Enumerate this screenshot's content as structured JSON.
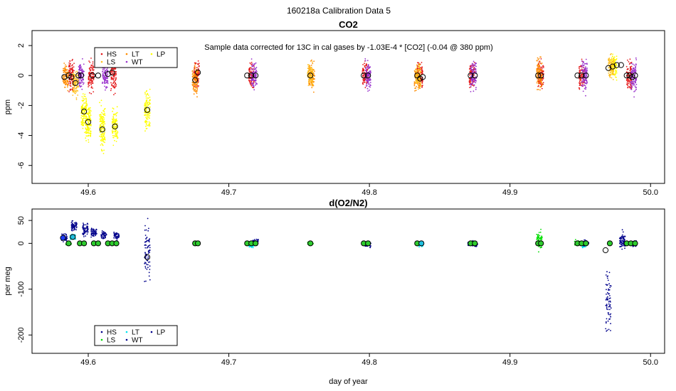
{
  "page_title": "160218a   Calibration Data 5",
  "chart_data": [
    {
      "type": "scatter",
      "title": "CO2",
      "annotation": "Sample data corrected for 13C in cal gases by -1.03E-4 * [CO2] (-0.04 @ 380 ppm)",
      "xlabel": "",
      "ylabel": "ppm",
      "xlim": [
        49.56,
        50.01
      ],
      "ylim": [
        -7.2,
        3.0
      ],
      "xticks": [
        49.6,
        49.7,
        49.8,
        49.9,
        50.0
      ],
      "xtick_labels": [
        "49.6",
        "49.7",
        "49.8",
        "49.9",
        "50.0"
      ],
      "yticks": [
        -6,
        -4,
        -2,
        0,
        2
      ],
      "ytick_labels": [
        "-6",
        "-4",
        "-2",
        "0",
        "2"
      ],
      "legend": {
        "position": "top-left",
        "entries": [
          {
            "label": "HS",
            "color": "#e41a1c"
          },
          {
            "label": "LT",
            "color": "#ff8c00"
          },
          {
            "label": "LP",
            "color": "#ffff00"
          },
          {
            "label": "LS",
            "color": "#ffc020"
          },
          {
            "label": "WT",
            "color": "#9932cc"
          }
        ]
      },
      "series": [
        {
          "name": "HS",
          "color": "#e41a1c",
          "clusters": [
            {
              "x": 49.588,
              "y": 0.0,
              "spread": 0.9
            },
            {
              "x": 49.602,
              "y": 0.0,
              "spread": 0.9
            },
            {
              "x": 49.618,
              "y": 0.1,
              "spread": 1.0
            },
            {
              "x": 49.677,
              "y": 0.1,
              "spread": 0.7
            },
            {
              "x": 49.716,
              "y": 0.0,
              "spread": 0.7
            },
            {
              "x": 49.797,
              "y": 0.0,
              "spread": 0.7
            },
            {
              "x": 49.836,
              "y": -0.1,
              "spread": 0.8
            },
            {
              "x": 49.873,
              "y": 0.0,
              "spread": 0.8
            },
            {
              "x": 49.922,
              "y": 0.0,
              "spread": 0.8
            },
            {
              "x": 49.951,
              "y": 0.0,
              "spread": 0.8
            },
            {
              "x": 49.985,
              "y": 0.0,
              "spread": 0.9
            }
          ]
        },
        {
          "name": "LT",
          "color": "#ff8c00",
          "clusters": [
            {
              "x": 49.584,
              "y": -0.1,
              "spread": 0.8
            },
            {
              "x": 49.676,
              "y": -0.3,
              "spread": 0.9
            },
            {
              "x": 49.759,
              "y": 0.0,
              "spread": 0.8
            },
            {
              "x": 49.834,
              "y": -0.2,
              "spread": 0.7
            },
            {
              "x": 49.921,
              "y": 0.1,
              "spread": 0.9
            }
          ]
        },
        {
          "name": "LP",
          "color": "#ffff00",
          "clusters": [
            {
              "x": 49.597,
              "y": -2.4,
              "spread": 1.0
            },
            {
              "x": 49.6,
              "y": -3.1,
              "spread": 1.1
            },
            {
              "x": 49.61,
              "y": -3.6,
              "spread": 1.4
            },
            {
              "x": 49.619,
              "y": -3.4,
              "spread": 1.0
            },
            {
              "x": 49.642,
              "y": -2.3,
              "spread": 1.1
            },
            {
              "x": 49.974,
              "y": 0.6,
              "spread": 0.8
            }
          ]
        },
        {
          "name": "LS",
          "color": "#ffc020",
          "clusters": [
            {
              "x": 49.591,
              "y": -0.5,
              "spread": 0.8
            },
            {
              "x": 49.758,
              "y": 0.0,
              "spread": 0.7
            },
            {
              "x": 49.835,
              "y": 0.0,
              "spread": 0.7
            },
            {
              "x": 49.972,
              "y": 0.5,
              "spread": 0.7
            }
          ]
        },
        {
          "name": "WT",
          "color": "#9932cc",
          "clusters": [
            {
              "x": 49.595,
              "y": 0.0,
              "spread": 0.8
            },
            {
              "x": 49.612,
              "y": 0.0,
              "spread": 0.7
            },
            {
              "x": 49.718,
              "y": 0.0,
              "spread": 0.8
            },
            {
              "x": 49.799,
              "y": 0.0,
              "spread": 0.8
            },
            {
              "x": 49.874,
              "y": 0.0,
              "spread": 0.8
            },
            {
              "x": 49.953,
              "y": 0.0,
              "spread": 0.9
            },
            {
              "x": 49.988,
              "y": -0.1,
              "spread": 0.9
            }
          ]
        }
      ],
      "means": [
        {
          "x": 49.583,
          "y": -0.1
        },
        {
          "x": 49.586,
          "y": 0.0
        },
        {
          "x": 49.588,
          "y": -0.1
        },
        {
          "x": 49.591,
          "y": -0.5
        },
        {
          "x": 49.593,
          "y": 0.0
        },
        {
          "x": 49.595,
          "y": 0.0
        },
        {
          "x": 49.597,
          "y": -2.4
        },
        {
          "x": 49.6,
          "y": -3.1
        },
        {
          "x": 49.603,
          "y": 0.0
        },
        {
          "x": 49.607,
          "y": 0.0
        },
        {
          "x": 49.61,
          "y": -3.6
        },
        {
          "x": 49.614,
          "y": 0.1
        },
        {
          "x": 49.617,
          "y": 0.2
        },
        {
          "x": 49.619,
          "y": -3.4
        },
        {
          "x": 49.642,
          "y": -2.3
        },
        {
          "x": 49.676,
          "y": -0.3
        },
        {
          "x": 49.678,
          "y": 0.2
        },
        {
          "x": 49.713,
          "y": 0.0
        },
        {
          "x": 49.716,
          "y": 0.0
        },
        {
          "x": 49.719,
          "y": 0.0
        },
        {
          "x": 49.758,
          "y": 0.0
        },
        {
          "x": 49.796,
          "y": 0.0
        },
        {
          "x": 49.799,
          "y": 0.0
        },
        {
          "x": 49.834,
          "y": 0.0
        },
        {
          "x": 49.836,
          "y": -0.2
        },
        {
          "x": 49.838,
          "y": -0.1
        },
        {
          "x": 49.872,
          "y": 0.0
        },
        {
          "x": 49.875,
          "y": 0.0
        },
        {
          "x": 49.92,
          "y": 0.0
        },
        {
          "x": 49.922,
          "y": 0.0
        },
        {
          "x": 49.948,
          "y": 0.0
        },
        {
          "x": 49.951,
          "y": 0.0
        },
        {
          "x": 49.954,
          "y": 0.0
        },
        {
          "x": 49.97,
          "y": 0.5
        },
        {
          "x": 49.973,
          "y": 0.6
        },
        {
          "x": 49.976,
          "y": 0.7
        },
        {
          "x": 49.979,
          "y": 0.7
        },
        {
          "x": 49.983,
          "y": 0.0
        },
        {
          "x": 49.985,
          "y": 0.0
        },
        {
          "x": 49.987,
          "y": -0.1
        },
        {
          "x": 49.989,
          "y": 0.0
        }
      ]
    },
    {
      "type": "scatter",
      "title": "d(O2/N2)",
      "xlabel": "day of year",
      "ylabel": "per meg",
      "xlim": [
        49.56,
        50.01
      ],
      "ylim": [
        -240,
        75
      ],
      "xticks": [
        49.6,
        49.7,
        49.8,
        49.9,
        50.0
      ],
      "xtick_labels": [
        "49.6",
        "49.7",
        "49.8",
        "49.9",
        "50.0"
      ],
      "yticks": [
        -200,
        -100,
        0,
        50
      ],
      "ytick_labels": [
        "-200",
        "-100",
        "0",
        "50"
      ],
      "legend": {
        "position": "bottom-left",
        "entries": [
          {
            "label": "HS",
            "color": "#00008b"
          },
          {
            "label": "LT",
            "color": "#00e5ee"
          },
          {
            "label": "LP",
            "color": "#00008b"
          },
          {
            "label": "LS",
            "color": "#00dd00"
          },
          {
            "label": "WT",
            "color": "#00008b"
          }
        ]
      },
      "series": [
        {
          "name": "HS",
          "color": "#00008b",
          "clusters": [
            {
              "x": 49.583,
              "y": 12,
              "spread": 8
            },
            {
              "x": 49.59,
              "y": 38,
              "spread": 10
            },
            {
              "x": 49.598,
              "y": 28,
              "spread": 12
            },
            {
              "x": 49.604,
              "y": 25,
              "spread": 10
            },
            {
              "x": 49.611,
              "y": 18,
              "spread": 8
            },
            {
              "x": 49.62,
              "y": 18,
              "spread": 8
            },
            {
              "x": 49.719,
              "y": 3,
              "spread": 6
            },
            {
              "x": 49.799,
              "y": -3,
              "spread": 6
            },
            {
              "x": 49.875,
              "y": -2,
              "spread": 5
            },
            {
              "x": 49.98,
              "y": 5,
              "spread": 16
            },
            {
              "x": 49.988,
              "y": 0,
              "spread": 6
            }
          ]
        },
        {
          "name": "LT",
          "color": "#00e5ee",
          "clusters": [
            {
              "x": 49.589,
              "y": 14,
              "spread": 5
            },
            {
              "x": 49.716,
              "y": -3,
              "spread": 6
            },
            {
              "x": 49.836,
              "y": -2,
              "spread": 6
            },
            {
              "x": 49.952,
              "y": -2,
              "spread": 6
            }
          ]
        },
        {
          "name": "LP",
          "color": "#00008b",
          "clusters": [
            {
              "x": 49.642,
              "y": -18,
              "spread": 55
            },
            {
              "x": 49.97,
              "y": -130,
              "spread": 60
            }
          ]
        },
        {
          "name": "LS",
          "color": "#00dd00",
          "clusters": [
            {
              "x": 49.586,
              "y": 0,
              "spread": 3
            },
            {
              "x": 49.677,
              "y": 0,
              "spread": 3
            },
            {
              "x": 49.758,
              "y": 0,
              "spread": 3
            },
            {
              "x": 49.835,
              "y": 0,
              "spread": 3
            },
            {
              "x": 49.872,
              "y": 0,
              "spread": 4
            },
            {
              "x": 49.921,
              "y": 5,
              "spread": 18
            },
            {
              "x": 49.948,
              "y": 0,
              "spread": 6
            }
          ]
        },
        {
          "name": "WT",
          "color": "#00008b",
          "clusters": [
            {
              "x": 49.715,
              "y": 0,
              "spread": 4
            },
            {
              "x": 49.872,
              "y": 0,
              "spread": 4
            },
            {
              "x": 49.954,
              "y": 0,
              "spread": 6
            }
          ]
        }
      ],
      "means": [
        {
          "x": 49.582,
          "y": 12,
          "fill": "#1e3cff"
        },
        {
          "x": 49.586,
          "y": 0,
          "fill": "#2ecc2e"
        },
        {
          "x": 49.589,
          "y": 14,
          "fill": "#20c0e0"
        },
        {
          "x": 49.594,
          "y": 0,
          "fill": "#2ecc2e"
        },
        {
          "x": 49.597,
          "y": 0,
          "fill": "#2ecc2e"
        },
        {
          "x": 49.604,
          "y": 0,
          "fill": "#2ecc2e"
        },
        {
          "x": 49.607,
          "y": 0,
          "fill": "#2ecc2e"
        },
        {
          "x": 49.614,
          "y": 0,
          "fill": "#2ecc2e"
        },
        {
          "x": 49.617,
          "y": 0,
          "fill": "#2ecc2e"
        },
        {
          "x": 49.62,
          "y": 0,
          "fill": "#2ecc2e"
        },
        {
          "x": 49.642,
          "y": -30,
          "fill": "none"
        },
        {
          "x": 49.676,
          "y": 0,
          "fill": "#2ecc2e"
        },
        {
          "x": 49.678,
          "y": 0,
          "fill": "#2ecc2e"
        },
        {
          "x": 49.713,
          "y": 0,
          "fill": "#2ecc2e"
        },
        {
          "x": 49.716,
          "y": 0,
          "fill": "#2ecc2e"
        },
        {
          "x": 49.719,
          "y": 0,
          "fill": "#2ecc2e"
        },
        {
          "x": 49.758,
          "y": 0,
          "fill": "#2ecc2e"
        },
        {
          "x": 49.796,
          "y": 0,
          "fill": "#2ecc2e"
        },
        {
          "x": 49.799,
          "y": 0,
          "fill": "#2ecc2e"
        },
        {
          "x": 49.834,
          "y": 0,
          "fill": "#2ecc2e"
        },
        {
          "x": 49.837,
          "y": 0,
          "fill": "#20c0e0"
        },
        {
          "x": 49.872,
          "y": 0,
          "fill": "#2ecc2e"
        },
        {
          "x": 49.875,
          "y": 0,
          "fill": "#2ecc2e"
        },
        {
          "x": 49.92,
          "y": 0,
          "fill": "#2ecc2e"
        },
        {
          "x": 49.922,
          "y": 0,
          "fill": "#2ecc2e"
        },
        {
          "x": 49.948,
          "y": 0,
          "fill": "#2ecc2e"
        },
        {
          "x": 49.951,
          "y": 0,
          "fill": "#2ecc2e"
        },
        {
          "x": 49.954,
          "y": 0,
          "fill": "#2ecc2e"
        },
        {
          "x": 49.968,
          "y": -15,
          "fill": "none"
        },
        {
          "x": 49.971,
          "y": 0,
          "fill": "#2ecc2e"
        },
        {
          "x": 49.983,
          "y": 0,
          "fill": "#2ecc2e"
        },
        {
          "x": 49.986,
          "y": 0,
          "fill": "#2ecc2e"
        },
        {
          "x": 49.989,
          "y": 0,
          "fill": "#2ecc2e"
        }
      ]
    }
  ]
}
